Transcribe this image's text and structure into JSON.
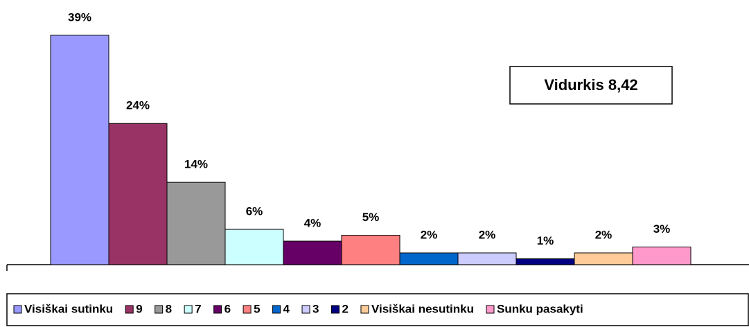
{
  "chart_data": {
    "type": "bar",
    "annotation": "Vidurkis 8,42",
    "series": [
      {
        "name": "Visiškai sutinku",
        "color": "#9999ff",
        "values": [
          39
        ],
        "value_labels": [
          "39%"
        ]
      },
      {
        "name": "9",
        "color": "#993366",
        "values": [
          24
        ],
        "value_labels": [
          "24%"
        ]
      },
      {
        "name": "8",
        "color": "#999999",
        "values": [
          14
        ],
        "value_labels": [
          "14%"
        ]
      },
      {
        "name": "7",
        "color": "#ccffff",
        "values": [
          6
        ],
        "value_labels": [
          "6%"
        ]
      },
      {
        "name": "6",
        "color": "#660066",
        "values": [
          4
        ],
        "value_labels": [
          "4%"
        ]
      },
      {
        "name": "5",
        "color": "#ff8080",
        "values": [
          5
        ],
        "value_labels": [
          "5%"
        ]
      },
      {
        "name": "4",
        "color": "#0066cc",
        "values": [
          2
        ],
        "value_labels": [
          "2%"
        ]
      },
      {
        "name": "3",
        "color": "#ccccff",
        "values": [
          2
        ],
        "value_labels": [
          "2%"
        ]
      },
      {
        "name": "2",
        "color": "#000080",
        "values": [
          1
        ],
        "value_labels": [
          "1%"
        ]
      },
      {
        "name": "Visiškai nesutinku",
        "color": "#ffcc99",
        "values": [
          2
        ],
        "value_labels": [
          "2%"
        ]
      },
      {
        "name": "Sunku pasakyti",
        "color": "#ff99cc",
        "values": [
          3
        ],
        "value_labels": [
          "3%"
        ]
      }
    ]
  }
}
